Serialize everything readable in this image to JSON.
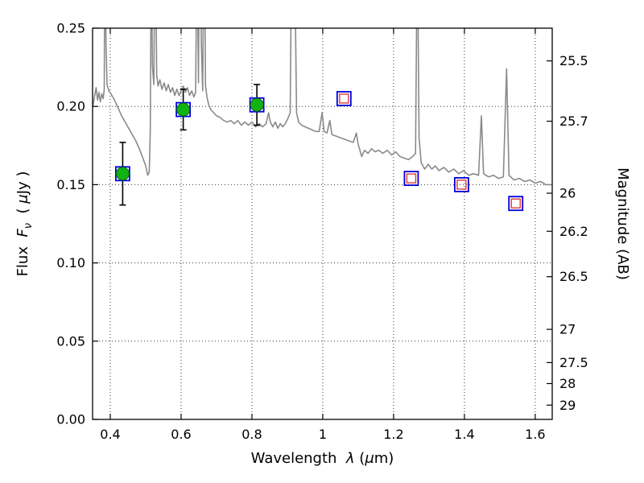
{
  "figure": {
    "background": "#ffffff"
  },
  "chart_data": {
    "type": "line+scatter",
    "title": "",
    "xlabel_segments": [
      {
        "t": "Wavelength  "
      },
      {
        "t": "λ",
        "i": true
      },
      {
        "t": " ("
      },
      {
        "t": "μ",
        "i": true
      },
      {
        "t": "m)"
      }
    ],
    "ylabel_left_segments": [
      {
        "t": "Flux  "
      },
      {
        "t": "F",
        "i": true
      },
      {
        "t": "ν",
        "i": true,
        "sub": true
      },
      {
        "t": "  ( "
      },
      {
        "t": "μ",
        "i": true
      },
      {
        "t": "Jy )"
      }
    ],
    "ylabel_right_segments": [
      {
        "t": "Magnitude (AB)"
      }
    ],
    "xlim": [
      0.35,
      1.648
    ],
    "ylim": [
      0.0,
      0.25
    ],
    "grid": {
      "on": true,
      "style": "dotted"
    },
    "x_ticks": [
      0.4,
      0.6,
      0.8,
      1.0,
      1.2,
      1.4,
      1.6
    ],
    "x_tick_labels": [
      "0.4",
      "0.6",
      "0.8",
      "1",
      "1.2",
      "1.4",
      "1.6"
    ],
    "y_ticks_left": [
      0.0,
      0.05,
      0.1,
      0.15,
      0.2,
      0.25
    ],
    "y_tick_labels_left": [
      "0.00",
      "0.05",
      "0.10",
      "0.15",
      "0.20",
      "0.25"
    ],
    "right_axis": {
      "label": "Magnitude (AB)",
      "ab_zeropoint_ujy": 23.9,
      "tick_mags": [
        25.5,
        25.7,
        26.0,
        26.2,
        26.5,
        27.0,
        27.5,
        28.0,
        29.0
      ],
      "tick_labels": [
        "25.5",
        "25.7",
        "26",
        "26.2",
        "26.5",
        "27",
        "27.5",
        "28",
        "29"
      ]
    },
    "colors": {
      "spectrum": "#8a8a8a",
      "square": "#0000dd",
      "inner_square": "#dd3b3b",
      "circle_fill": "#12b212",
      "circle_edge": "#056e05",
      "errorbar": "#000000",
      "grid": "#333333",
      "frame": "#000000",
      "text": "#000000"
    },
    "photometry": {
      "name": "observed-photometry",
      "points": [
        {
          "x": 0.435,
          "y": 0.157,
          "err": 0.02,
          "green": true
        },
        {
          "x": 0.606,
          "y": 0.198,
          "err": 0.013,
          "green": true
        },
        {
          "x": 0.814,
          "y": 0.201,
          "err": 0.013,
          "green": true
        },
        {
          "x": 1.06,
          "y": 0.205,
          "err": 0.0,
          "green": false
        },
        {
          "x": 1.25,
          "y": 0.154,
          "err": 0.0,
          "green": false
        },
        {
          "x": 1.392,
          "y": 0.15,
          "err": 0.0,
          "green": false
        },
        {
          "x": 1.545,
          "y": 0.138,
          "err": 0.0,
          "green": false
        }
      ]
    },
    "spectrum": {
      "name": "model-spectrum",
      "points": [
        [
          0.35,
          0.199
        ],
        [
          0.356,
          0.207
        ],
        [
          0.36,
          0.212
        ],
        [
          0.364,
          0.204
        ],
        [
          0.368,
          0.209
        ],
        [
          0.372,
          0.203
        ],
        [
          0.376,
          0.208
        ],
        [
          0.38,
          0.205
        ],
        [
          0.383,
          0.211
        ],
        [
          0.385,
          0.33
        ],
        [
          0.388,
          0.24
        ],
        [
          0.391,
          0.214
        ],
        [
          0.396,
          0.21
        ],
        [
          0.402,
          0.208
        ],
        [
          0.412,
          0.204
        ],
        [
          0.422,
          0.199
        ],
        [
          0.432,
          0.194
        ],
        [
          0.442,
          0.19
        ],
        [
          0.452,
          0.186
        ],
        [
          0.462,
          0.182
        ],
        [
          0.472,
          0.178
        ],
        [
          0.482,
          0.173
        ],
        [
          0.492,
          0.167
        ],
        [
          0.5,
          0.162
        ],
        [
          0.506,
          0.156
        ],
        [
          0.51,
          0.158
        ],
        [
          0.513,
          0.185
        ],
        [
          0.516,
          0.31
        ],
        [
          0.519,
          0.226
        ],
        [
          0.523,
          0.214
        ],
        [
          0.527,
          0.33
        ],
        [
          0.531,
          0.22
        ],
        [
          0.535,
          0.213
        ],
        [
          0.54,
          0.217
        ],
        [
          0.546,
          0.211
        ],
        [
          0.552,
          0.215
        ],
        [
          0.558,
          0.21
        ],
        [
          0.564,
          0.214
        ],
        [
          0.57,
          0.209
        ],
        [
          0.576,
          0.212
        ],
        [
          0.582,
          0.207
        ],
        [
          0.588,
          0.211
        ],
        [
          0.594,
          0.207
        ],
        [
          0.6,
          0.21
        ],
        [
          0.606,
          0.213
        ],
        [
          0.612,
          0.209
        ],
        [
          0.618,
          0.212
        ],
        [
          0.624,
          0.207
        ],
        [
          0.63,
          0.21
        ],
        [
          0.636,
          0.206
        ],
        [
          0.641,
          0.209
        ],
        [
          0.645,
          0.31
        ],
        [
          0.649,
          0.215
        ],
        [
          0.653,
          0.35
        ],
        [
          0.657,
          0.24
        ],
        [
          0.661,
          0.21
        ],
        [
          0.665,
          0.33
        ],
        [
          0.669,
          0.213
        ],
        [
          0.673,
          0.206
        ],
        [
          0.678,
          0.201
        ],
        [
          0.684,
          0.198
        ],
        [
          0.692,
          0.196
        ],
        [
          0.7,
          0.194
        ],
        [
          0.71,
          0.193
        ],
        [
          0.72,
          0.191
        ],
        [
          0.73,
          0.19
        ],
        [
          0.74,
          0.191
        ],
        [
          0.75,
          0.189
        ],
        [
          0.76,
          0.191
        ],
        [
          0.77,
          0.188
        ],
        [
          0.78,
          0.19
        ],
        [
          0.79,
          0.188
        ],
        [
          0.8,
          0.19
        ],
        [
          0.81,
          0.187
        ],
        [
          0.82,
          0.189
        ],
        [
          0.83,
          0.187
        ],
        [
          0.84,
          0.189
        ],
        [
          0.847,
          0.196
        ],
        [
          0.852,
          0.19
        ],
        [
          0.859,
          0.187
        ],
        [
          0.866,
          0.19
        ],
        [
          0.873,
          0.186
        ],
        [
          0.88,
          0.189
        ],
        [
          0.887,
          0.187
        ],
        [
          0.894,
          0.189
        ],
        [
          0.901,
          0.192
        ],
        [
          0.908,
          0.196
        ],
        [
          0.913,
          0.33
        ],
        [
          0.917,
          0.36
        ],
        [
          0.921,
          0.29
        ],
        [
          0.926,
          0.196
        ],
        [
          0.932,
          0.19
        ],
        [
          0.94,
          0.188
        ],
        [
          0.95,
          0.187
        ],
        [
          0.96,
          0.186
        ],
        [
          0.97,
          0.185
        ],
        [
          0.98,
          0.184
        ],
        [
          0.99,
          0.184
        ],
        [
          0.998,
          0.196
        ],
        [
          1.004,
          0.184
        ],
        [
          1.012,
          0.183
        ],
        [
          1.02,
          0.191
        ],
        [
          1.026,
          0.182
        ],
        [
          1.038,
          0.181
        ],
        [
          1.05,
          0.18
        ],
        [
          1.062,
          0.179
        ],
        [
          1.074,
          0.178
        ],
        [
          1.086,
          0.177
        ],
        [
          1.095,
          0.183
        ],
        [
          1.1,
          0.176
        ],
        [
          1.11,
          0.168
        ],
        [
          1.118,
          0.172
        ],
        [
          1.128,
          0.17
        ],
        [
          1.138,
          0.173
        ],
        [
          1.148,
          0.171
        ],
        [
          1.158,
          0.172
        ],
        [
          1.17,
          0.17
        ],
        [
          1.182,
          0.172
        ],
        [
          1.194,
          0.169
        ],
        [
          1.206,
          0.171
        ],
        [
          1.218,
          0.168
        ],
        [
          1.23,
          0.167
        ],
        [
          1.242,
          0.166
        ],
        [
          1.254,
          0.168
        ],
        [
          1.262,
          0.17
        ],
        [
          1.267,
          0.31
        ],
        [
          1.272,
          0.18
        ],
        [
          1.278,
          0.164
        ],
        [
          1.288,
          0.16
        ],
        [
          1.298,
          0.163
        ],
        [
          1.308,
          0.16
        ],
        [
          1.318,
          0.162
        ],
        [
          1.328,
          0.159
        ],
        [
          1.342,
          0.161
        ],
        [
          1.356,
          0.158
        ],
        [
          1.37,
          0.16
        ],
        [
          1.384,
          0.157
        ],
        [
          1.398,
          0.159
        ],
        [
          1.412,
          0.156
        ],
        [
          1.426,
          0.157
        ],
        [
          1.44,
          0.156
        ],
        [
          1.448,
          0.194
        ],
        [
          1.454,
          0.157
        ],
        [
          1.468,
          0.155
        ],
        [
          1.482,
          0.156
        ],
        [
          1.496,
          0.154
        ],
        [
          1.51,
          0.155
        ],
        [
          1.519,
          0.224
        ],
        [
          1.526,
          0.156
        ],
        [
          1.54,
          0.153
        ],
        [
          1.555,
          0.154
        ],
        [
          1.57,
          0.152
        ],
        [
          1.585,
          0.153
        ],
        [
          1.6,
          0.151
        ],
        [
          1.615,
          0.152
        ],
        [
          1.63,
          0.15
        ],
        [
          1.648,
          0.15
        ]
      ]
    }
  }
}
